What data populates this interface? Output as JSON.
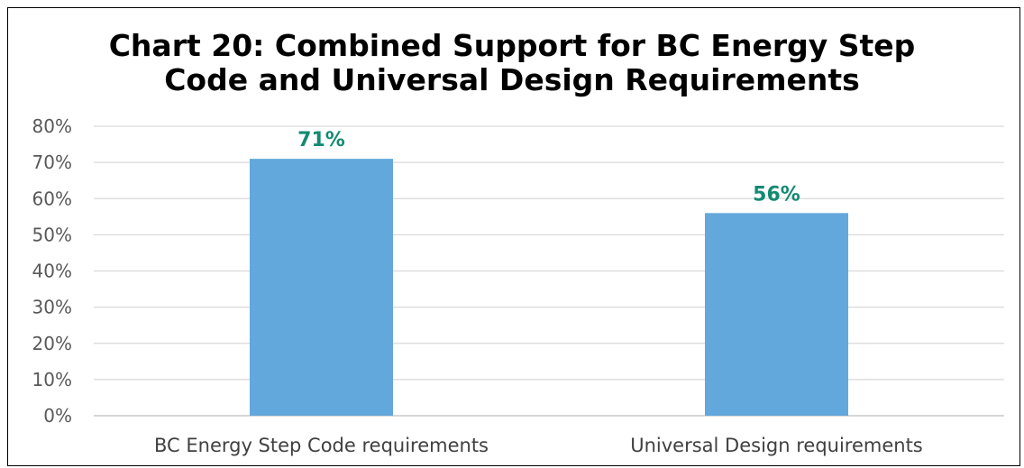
{
  "chart_data": {
    "type": "bar",
    "title_line1": "Chart 20: Combined Support for BC Energy Step",
    "title_line2": "Code and Universal Design Requirements",
    "categories": [
      "BC Energy Step Code requirements",
      "Universal Design requirements"
    ],
    "values": [
      71,
      56
    ],
    "data_labels": [
      "71%",
      "56%"
    ],
    "ylim": [
      0,
      80
    ],
    "yticks": [
      0,
      10,
      20,
      30,
      40,
      50,
      60,
      70,
      80
    ],
    "ytick_labels": [
      "0%",
      "10%",
      "20%",
      "30%",
      "40%",
      "50%",
      "60%",
      "70%",
      "80%"
    ],
    "xlabel": "",
    "ylabel": "",
    "grid": true,
    "bar_color": "#62a8dc",
    "label_color": "#138a72",
    "grid_color": "#d9d9d9"
  }
}
